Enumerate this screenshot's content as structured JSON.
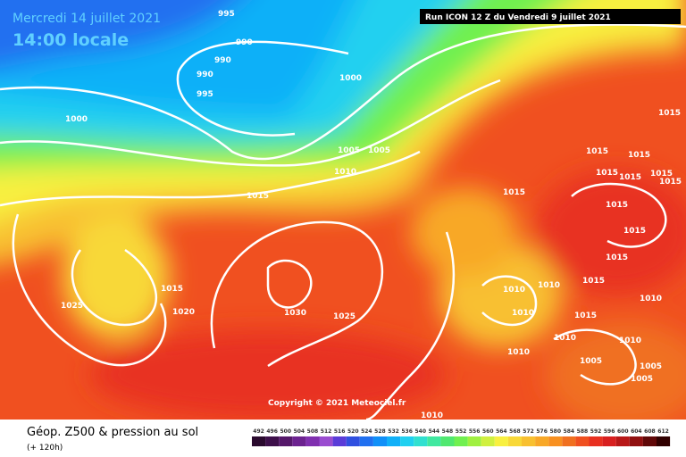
{
  "header": {
    "date": "Mercredi 14 juillet 2021",
    "time": "14:00 locale",
    "run": "Run ICON 12 Z du Vendredi 9 juillet 2021"
  },
  "copyright": "Copyright © 2021 Meteociel.fr",
  "footer": {
    "title": "Géop. Z500 & pression au sol",
    "lead": "(+ 120h)"
  },
  "isobar_labels": [
    "995",
    "990",
    "990",
    "990",
    "995",
    "1000",
    "1000",
    "1005",
    "1005",
    "1010",
    "1015",
    "1015",
    "1025",
    "1020",
    "1030",
    "1025",
    "1015",
    "1015",
    "1015",
    "1015",
    "1015",
    "1015",
    "1015",
    "1015",
    "1015",
    "1015",
    "1015",
    "1015",
    "1015",
    "1010",
    "1010",
    "1010",
    "1010",
    "1010",
    "1010",
    "1010",
    "1005",
    "1005",
    "1005",
    "1010"
  ],
  "scale": {
    "ticks": [
      492,
      496,
      500,
      504,
      508,
      512,
      516,
      520,
      524,
      528,
      532,
      536,
      540,
      544,
      548,
      552,
      556,
      560,
      564,
      568,
      572,
      576,
      580,
      584,
      588,
      592,
      596,
      600,
      604,
      608,
      612
    ],
    "colors": [
      "#2a0a2e",
      "#3d0f4a",
      "#55186a",
      "#6c2390",
      "#8030b0",
      "#9a4cd0",
      "#5a3cd8",
      "#3050e0",
      "#2070f0",
      "#1090f8",
      "#10b0f8",
      "#20d0f0",
      "#30e0d0",
      "#40e8a0",
      "#50e870",
      "#70f050",
      "#a0f040",
      "#d0f040",
      "#f8f040",
      "#f8d838",
      "#f8c030",
      "#f8a828",
      "#f89020",
      "#f07020",
      "#f05020",
      "#e83020",
      "#d82020",
      "#b81818",
      "#901010",
      "#600808",
      "#300000"
    ]
  }
}
